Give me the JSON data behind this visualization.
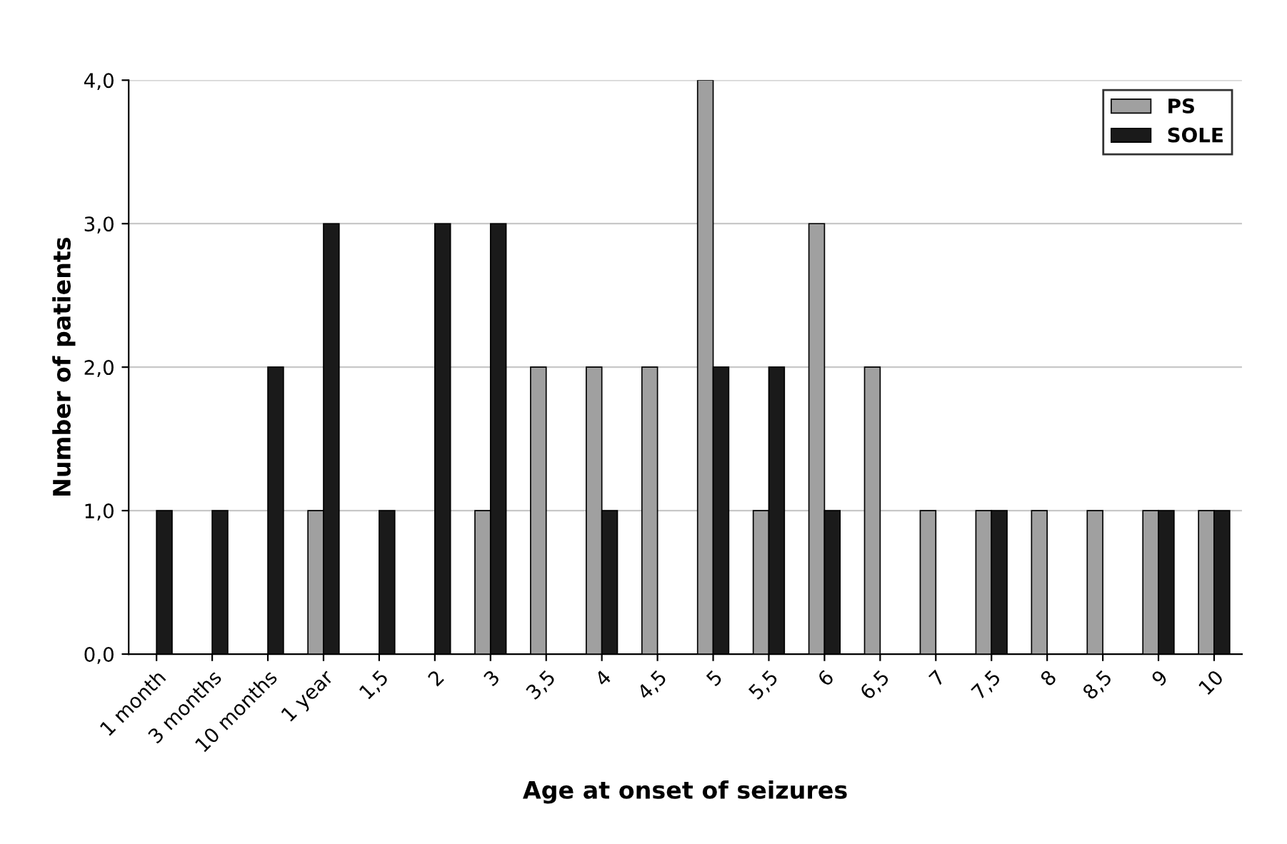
{
  "chart_data": {
    "type": "bar",
    "xlabel": "Age at onset of seizures",
    "ylabel": "Number of patients",
    "categories": [
      "1 month",
      "3 months",
      "10 months",
      "1 year",
      "1,5",
      "2",
      "3",
      "3,5",
      "4",
      "4,5",
      "5",
      "5,5",
      "6",
      "6,5",
      "7",
      "7,5",
      "8",
      "8,5",
      "9",
      "10"
    ],
    "series": [
      {
        "name": "PS",
        "color": "#a0a0a0",
        "values": [
          null,
          null,
          null,
          1,
          null,
          null,
          1,
          2,
          2,
          2,
          4,
          1,
          3,
          2,
          1,
          1,
          1,
          1,
          1,
          1
        ]
      },
      {
        "name": "SOLE",
        "color": "#1a1a1a",
        "values": [
          1,
          1,
          2,
          3,
          1,
          3,
          3,
          null,
          1,
          null,
          2,
          2,
          1,
          null,
          null,
          1,
          null,
          null,
          1,
          1
        ]
      }
    ],
    "ylim": [
      0,
      4
    ],
    "yticks": [
      {
        "value": 0,
        "label": "0,0"
      },
      {
        "value": 1,
        "label": "1,0"
      },
      {
        "value": 2,
        "label": "2,0"
      },
      {
        "value": 3,
        "label": "3,0"
      },
      {
        "value": 4,
        "label": "4,0"
      }
    ],
    "grid": "y",
    "legend": "top right"
  }
}
